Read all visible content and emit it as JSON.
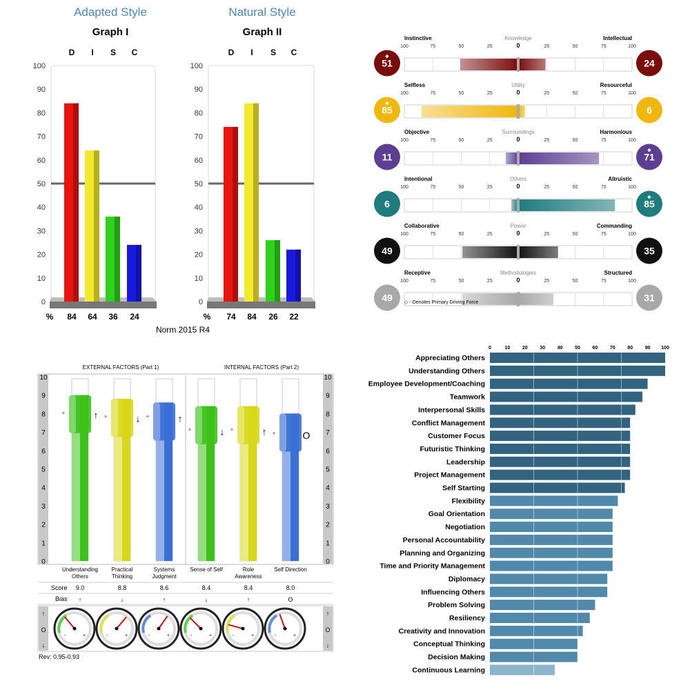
{
  "disc": {
    "graph1": {
      "style_title": "Adapted Style",
      "graph_title": "Graph I"
    },
    "graph2": {
      "style_title": "Natural Style",
      "graph_title": "Graph II"
    },
    "norm": "Norm 2015 R4",
    "percent_label": "%"
  },
  "motivators_footnote": "◇ - Denotes Primary Driving Force",
  "acumen": {
    "header_external": "EXTERNAL FACTORS (Part 1)",
    "header_internal": "INTERNAL FACTORS (Part 2)",
    "score_label": "Score",
    "bias_label": "Bias",
    "rev": "Rev: 0.95-0.93",
    "side_ticks": [
      "10",
      "9",
      "8",
      "7",
      "6",
      "5",
      "4",
      "3",
      "2",
      "1",
      "0"
    ],
    "dial_labels": [
      "↑",
      "O",
      "↓"
    ]
  },
  "chart_data": [
    {
      "type": "bar",
      "title": "Graph I",
      "subtitle": "Adapted Style",
      "categories": [
        "D",
        "I",
        "S",
        "C"
      ],
      "values": [
        84,
        64,
        36,
        24
      ],
      "ylim": [
        0,
        100
      ],
      "yticks": [
        0,
        10,
        20,
        30,
        40,
        50,
        60,
        70,
        80,
        90,
        100
      ],
      "reference_line": 50,
      "colors": [
        "#e8140d",
        "#f2ea2a",
        "#2fd21a",
        "#1818e0"
      ]
    },
    {
      "type": "bar",
      "title": "Graph II",
      "subtitle": "Natural Style",
      "categories": [
        "D",
        "I",
        "S",
        "C"
      ],
      "values": [
        74,
        84,
        26,
        22
      ],
      "ylim": [
        0,
        100
      ],
      "yticks": [
        0,
        10,
        20,
        30,
        40,
        50,
        60,
        70,
        80,
        90,
        100
      ],
      "reference_line": 50,
      "colors": [
        "#e8140d",
        "#f2ea2a",
        "#2fd21a",
        "#1818e0"
      ]
    },
    {
      "type": "bar",
      "orientation": "diverging",
      "ticks": [
        "100",
        "75",
        "50",
        "25",
        "0",
        "25",
        "50",
        "75",
        "100"
      ],
      "rows": [
        {
          "name": "Knowledge",
          "left_label": "Instinctive",
          "right_label": "Intellectual",
          "left": 51,
          "right": 24,
          "primary": "left",
          "color": "#7a0c0c"
        },
        {
          "name": "Utility",
          "left_label": "Selfless",
          "right_label": "Resourceful",
          "left": 85,
          "right": 6,
          "primary": "left",
          "color": "#f0b70c"
        },
        {
          "name": "Surroundings",
          "left_label": "Objective",
          "right_label": "Harmonious",
          "left": 11,
          "right": 71,
          "primary": "right",
          "color": "#5c3f92"
        },
        {
          "name": "Others",
          "left_label": "Intentional",
          "right_label": "Altruistic",
          "left": 6,
          "right": 85,
          "primary": "right",
          "color": "#1e7b7e"
        },
        {
          "name": "Power",
          "left_label": "Collaborative",
          "right_label": "Commanding",
          "left": 49,
          "right": 35,
          "primary": "none",
          "color": "#111111"
        },
        {
          "name": "Methodologies",
          "left_label": "Receptive",
          "right_label": "Structured",
          "left": 49,
          "right": 31,
          "primary": "none",
          "color": "#a8a8a8"
        }
      ]
    },
    {
      "type": "bar",
      "orientation": "vertical",
      "categories": [
        {
          "top": "Understanding",
          "bottom": "Others"
        },
        {
          "top": "Practical",
          "bottom": "Thinking"
        },
        {
          "top": "Systems",
          "bottom": "Judgment"
        },
        {
          "top": "Sense of Self",
          "bottom": ""
        },
        {
          "top": "Role",
          "bottom": "Awareness"
        },
        {
          "top": "Self Direction",
          "bottom": ""
        }
      ],
      "values": [
        9.0,
        8.8,
        8.6,
        8.4,
        8.4,
        8.0
      ],
      "scores": [
        "9.0",
        "8.8",
        "8.6",
        "8.4",
        "8.4",
        "8.0"
      ],
      "bias": [
        "↑",
        "↓",
        "↑",
        "↓",
        "↑",
        "O"
      ],
      "markers": [
        8,
        7.8,
        7.8,
        7.1,
        7.1,
        6.9
      ],
      "ylim": [
        0,
        10
      ],
      "colors": [
        "#3cc21a",
        "#d8d81a",
        "#3a6fd6",
        "#3cc21a",
        "#d8d81a",
        "#3a6fd6"
      ]
    },
    {
      "type": "bar",
      "orientation": "horizontal",
      "xlim": [
        0,
        100
      ],
      "xticks": [
        "0",
        "10",
        "20",
        "30",
        "40",
        "50",
        "60",
        "70",
        "80",
        "90",
        "100"
      ],
      "categories": [
        "Appreciating Others",
        "Understanding Others",
        "Employee Development/Coaching",
        "Teamwork",
        "Interpersonal Skills",
        "Conflict Management",
        "Customer Focus",
        "Futuristic Thinking",
        "Leadership",
        "Project Management",
        "Self Starting",
        "Flexibility",
        "Goal Orientation",
        "Negotiation",
        "Personal Accountability",
        "Planning and Organizing",
        "Time and Priority Management",
        "Diplomacy",
        "Influencing Others",
        "Problem Solving",
        "Resiliency",
        "Creativity and Innovation",
        "Conceptual Thinking",
        "Decision Making",
        "Continuous Learning"
      ],
      "values": [
        100,
        100,
        90,
        87,
        83,
        80,
        80,
        80,
        80,
        80,
        77,
        73,
        70,
        70,
        70,
        70,
        70,
        67,
        67,
        60,
        57,
        53,
        50,
        50,
        37
      ],
      "tiers": [
        1,
        1,
        1,
        1,
        1,
        1,
        1,
        1,
        1,
        1,
        1,
        2,
        2,
        2,
        2,
        2,
        2,
        2,
        2,
        2,
        2,
        2,
        2,
        2,
        3
      ],
      "tier_colors": {
        "1": "#33647f",
        "2": "#5089aa",
        "3": "#8cb4ca"
      }
    }
  ]
}
